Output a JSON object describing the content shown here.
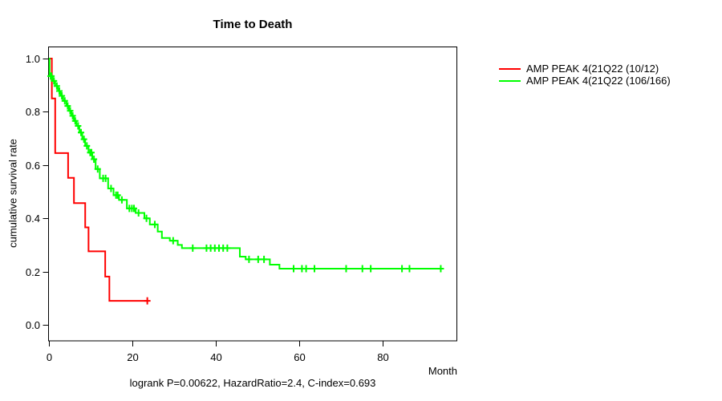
{
  "chart_data": {
    "type": "line",
    "subtype": "kaplan-meier-step",
    "title": "Time to Death",
    "xlabel": "Month",
    "ylabel": "cumulative survival rate",
    "footnote": "logrank P=0.00622, HazardRatio=2.4, C-index=0.693",
    "xlim": [
      0,
      98
    ],
    "ylim": [
      0.0,
      1.0
    ],
    "grid": false,
    "legend_position": "top-right-outside",
    "x_ticks": [
      {
        "label": "0",
        "value": 0
      },
      {
        "label": "20",
        "value": 20
      },
      {
        "label": "40",
        "value": 40
      },
      {
        "label": "60",
        "value": 60
      },
      {
        "label": "80",
        "value": 80
      }
    ],
    "y_ticks": [
      {
        "label": "0.0",
        "value": 0.0
      },
      {
        "label": "0.2",
        "value": 0.2
      },
      {
        "label": "0.4",
        "value": 0.4
      },
      {
        "label": "0.6",
        "value": 0.6
      },
      {
        "label": "0.8",
        "value": 0.8
      },
      {
        "label": "1.0",
        "value": 1.0
      }
    ],
    "series": [
      {
        "name": "AMP PEAK 4(21Q22 (10/12)",
        "color": "#ff0000",
        "steps": [
          [
            0,
            1.0
          ],
          [
            0.7,
            0.85
          ],
          [
            1.5,
            0.645
          ],
          [
            4.6,
            0.552
          ],
          [
            6.0,
            0.457
          ],
          [
            8.7,
            0.366
          ],
          [
            9.5,
            0.276
          ],
          [
            13.5,
            0.181
          ],
          [
            14.5,
            0.09
          ]
        ],
        "end_month": 23.6,
        "censor_marks": [
          [
            23.6,
            0.09
          ]
        ]
      },
      {
        "name": "AMP PEAK 4(21Q22 (106/166)",
        "color": "#00ff00",
        "steps": [
          [
            0,
            1.0
          ],
          [
            0.15,
            0.934
          ],
          [
            0.9,
            0.916
          ],
          [
            1.5,
            0.897
          ],
          [
            2.2,
            0.878
          ],
          [
            2.8,
            0.86
          ],
          [
            3.4,
            0.841
          ],
          [
            4.2,
            0.822
          ],
          [
            4.8,
            0.804
          ],
          [
            5.4,
            0.785
          ],
          [
            6.0,
            0.766
          ],
          [
            6.6,
            0.747
          ],
          [
            7.3,
            0.722
          ],
          [
            8.0,
            0.697
          ],
          [
            8.7,
            0.672
          ],
          [
            9.5,
            0.647
          ],
          [
            10.4,
            0.622
          ],
          [
            11.2,
            0.585
          ],
          [
            12.2,
            0.55
          ],
          [
            14.2,
            0.512
          ],
          [
            15.5,
            0.487
          ],
          [
            16.8,
            0.469
          ],
          [
            18.7,
            0.437
          ],
          [
            20.8,
            0.42
          ],
          [
            22.9,
            0.4
          ],
          [
            24.2,
            0.377
          ],
          [
            26.1,
            0.35
          ],
          [
            27.1,
            0.326
          ],
          [
            29.0,
            0.316
          ],
          [
            30.9,
            0.3
          ],
          [
            31.9,
            0.288
          ],
          [
            45.8,
            0.256
          ],
          [
            47.2,
            0.246
          ],
          [
            53.0,
            0.226
          ],
          [
            55.3,
            0.211
          ]
        ],
        "end_month": 94,
        "censor_marks": [
          [
            0.4,
            0.934
          ],
          [
            0.6,
            0.934
          ],
          [
            1.2,
            0.916
          ],
          [
            1.9,
            0.897
          ],
          [
            2.5,
            0.878
          ],
          [
            3.1,
            0.86
          ],
          [
            3.8,
            0.841
          ],
          [
            4.5,
            0.822
          ],
          [
            5.1,
            0.804
          ],
          [
            5.7,
            0.785
          ],
          [
            6.3,
            0.766
          ],
          [
            7.0,
            0.747
          ],
          [
            7.7,
            0.722
          ],
          [
            8.4,
            0.697
          ],
          [
            9.1,
            0.672
          ],
          [
            9.9,
            0.647
          ],
          [
            10.2,
            0.647
          ],
          [
            10.8,
            0.622
          ],
          [
            11.7,
            0.585
          ],
          [
            13.0,
            0.55
          ],
          [
            13.6,
            0.55
          ],
          [
            14.9,
            0.512
          ],
          [
            16.1,
            0.487
          ],
          [
            16.5,
            0.487
          ],
          [
            17.5,
            0.469
          ],
          [
            19.3,
            0.437
          ],
          [
            19.9,
            0.437
          ],
          [
            20.4,
            0.437
          ],
          [
            21.5,
            0.42
          ],
          [
            23.4,
            0.4
          ],
          [
            25.4,
            0.377
          ],
          [
            29.8,
            0.316
          ],
          [
            34.5,
            0.288
          ],
          [
            37.8,
            0.288
          ],
          [
            38.8,
            0.288
          ],
          [
            39.8,
            0.288
          ],
          [
            40.8,
            0.288
          ],
          [
            41.8,
            0.288
          ],
          [
            42.8,
            0.288
          ],
          [
            48.0,
            0.246
          ],
          [
            50.2,
            0.246
          ],
          [
            51.6,
            0.246
          ],
          [
            58.7,
            0.211
          ],
          [
            60.7,
            0.211
          ],
          [
            61.7,
            0.211
          ],
          [
            63.7,
            0.211
          ],
          [
            71.3,
            0.211
          ],
          [
            75.2,
            0.211
          ],
          [
            77.2,
            0.211
          ],
          [
            84.7,
            0.211
          ],
          [
            86.5,
            0.211
          ],
          [
            94,
            0.211
          ]
        ]
      }
    ]
  }
}
